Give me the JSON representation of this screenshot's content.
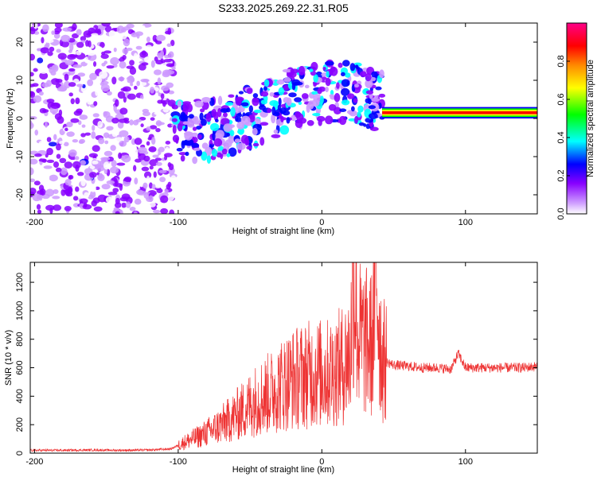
{
  "title": "S233.2025.269.22.31.R05",
  "chart_data": [
    {
      "type": "heatmap",
      "name": "spectrogram",
      "xlabel": "Height of straight line (km)",
      "ylabel": "Frequency (Hz)",
      "xlim": [
        -203,
        150
      ],
      "ylim": [
        -25,
        25
      ],
      "xticks": [
        -200,
        -100,
        0,
        100
      ],
      "yticks": [
        -20,
        -10,
        0,
        10,
        20
      ],
      "colorbar": {
        "label": "Normalized spectral amplitude",
        "range": [
          0,
          1
        ],
        "ticks": [
          "0.0",
          "0.2",
          "0.4",
          "0.6",
          "0.8"
        ],
        "colors": [
          "#ffffff",
          "#cc99ff",
          "#8800ff",
          "#0000ff",
          "#00ffff",
          "#00ff00",
          "#ffff00",
          "#ff8800",
          "#ff0000",
          "#ff0088"
        ]
      },
      "description_regions": [
        {
          "x_range": [
            -203,
            -103
          ],
          "freq_range": [
            -25,
            25
          ],
          "amplitude": 0.1
        },
        {
          "x_range": [
            -103,
            42
          ],
          "freq_range": [
            -17,
            14
          ],
          "amplitude": 0.25
        },
        {
          "x_range": [
            42,
            150
          ],
          "freq_center": 1.5,
          "freq_width": 3,
          "amplitude": 0.8
        }
      ]
    },
    {
      "type": "line",
      "name": "snr",
      "xlabel": "Height of straight line (km)",
      "ylabel": "SNR (10 * v/v)",
      "xlim": [
        -203,
        150
      ],
      "ylim": [
        0,
        1340
      ],
      "xticks": [
        -200,
        -100,
        0,
        100
      ],
      "yticks": [
        0,
        200,
        400,
        600,
        800,
        1000,
        1200
      ],
      "color": "#ee3333",
      "series": [
        {
          "name": "SNR",
          "x": [
            -203,
            -180,
            -160,
            -140,
            -120,
            -105,
            -95,
            -85,
            -75,
            -65,
            -55,
            -45,
            -35,
            -25,
            -15,
            -5,
            5,
            15,
            20,
            22,
            25,
            30,
            35,
            38,
            40,
            42,
            45,
            50,
            60,
            70,
            80,
            90,
            95,
            100,
            120,
            140,
            150
          ],
          "y": [
            20,
            20,
            22,
            20,
            22,
            30,
            80,
            120,
            170,
            230,
            300,
            380,
            430,
            500,
            540,
            560,
            560,
            620,
            700,
            1330,
            820,
            780,
            760,
            1280,
            900,
            650,
            640,
            620,
            610,
            600,
            600,
            590,
            700,
            600,
            600,
            600,
            610
          ]
        }
      ]
    }
  ]
}
